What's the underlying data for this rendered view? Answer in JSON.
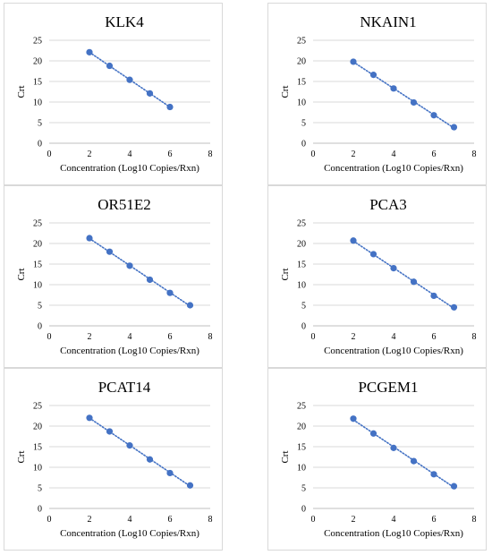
{
  "chart_data": [
    {
      "type": "scatter",
      "title": "KLK4",
      "xlabel": "Concentration (Log10 Copies/Rxn)",
      "ylabel": "Crt",
      "xlim": [
        0,
        8
      ],
      "ylim": [
        0,
        25
      ],
      "xticks": [
        0,
        2,
        4,
        6,
        8
      ],
      "yticks": [
        0,
        5,
        10,
        15,
        20,
        25
      ],
      "grid": "horizontal",
      "trendline": "linear, dotted",
      "series": [
        {
          "x": [
            2,
            3,
            4,
            5,
            6
          ],
          "y": [
            22.1,
            18.8,
            15.4,
            12.1,
            8.8
          ]
        }
      ],
      "color": "#4472c4"
    },
    {
      "type": "scatter",
      "title": "NKAIN1",
      "xlabel": "Concentration (Log10 Copies/Rxn)",
      "ylabel": "Crt",
      "xlim": [
        0,
        8
      ],
      "ylim": [
        0,
        25
      ],
      "xticks": [
        0,
        2,
        4,
        6,
        8
      ],
      "yticks": [
        0,
        5,
        10,
        15,
        20,
        25
      ],
      "grid": "horizontal",
      "trendline": "linear, dotted",
      "series": [
        {
          "x": [
            2,
            3,
            4,
            5,
            6,
            7
          ],
          "y": [
            19.8,
            16.6,
            13.3,
            9.9,
            6.8,
            3.9
          ]
        }
      ],
      "color": "#4472c4"
    },
    {
      "type": "scatter",
      "title": "OR51E2",
      "xlabel": "Concentration (Log10 Copies/Rxn)",
      "ylabel": "Crt",
      "xlim": [
        0,
        8
      ],
      "ylim": [
        0,
        25
      ],
      "xticks": [
        0,
        2,
        4,
        6,
        8
      ],
      "yticks": [
        0,
        5,
        10,
        15,
        20,
        25
      ],
      "grid": "horizontal",
      "trendline": "linear, dotted",
      "series": [
        {
          "x": [
            2,
            3,
            4,
            5,
            6,
            7
          ],
          "y": [
            21.3,
            18.0,
            14.6,
            11.2,
            8.0,
            5.0
          ]
        }
      ],
      "color": "#4472c4"
    },
    {
      "type": "scatter",
      "title": "PCA3",
      "xlabel": "Concentration (Log10 Copies/Rxn)",
      "ylabel": "Crt",
      "xlim": [
        0,
        8
      ],
      "ylim": [
        0,
        25
      ],
      "xticks": [
        0,
        2,
        4,
        6,
        8
      ],
      "yticks": [
        0,
        5,
        10,
        15,
        20,
        25
      ],
      "grid": "horizontal",
      "trendline": "linear, dotted",
      "series": [
        {
          "x": [
            2,
            3,
            4,
            5,
            6,
            7
          ],
          "y": [
            20.7,
            17.4,
            14.0,
            10.7,
            7.3,
            4.5
          ]
        }
      ],
      "color": "#4472c4"
    },
    {
      "type": "scatter",
      "title": "PCAT14",
      "xlabel": "Concentration (Log10 Copies/Rxn)",
      "ylabel": "Crt",
      "xlim": [
        0,
        8
      ],
      "ylim": [
        0,
        25
      ],
      "xticks": [
        0,
        2,
        4,
        6,
        8
      ],
      "yticks": [
        0,
        5,
        10,
        15,
        20,
        25
      ],
      "grid": "horizontal",
      "trendline": "linear, dotted",
      "series": [
        {
          "x": [
            2,
            3,
            4,
            5,
            6,
            7
          ],
          "y": [
            22.0,
            18.7,
            15.3,
            11.9,
            8.6,
            5.6
          ]
        }
      ],
      "color": "#4472c4"
    },
    {
      "type": "scatter",
      "title": "PCGEM1",
      "xlabel": "Concentration (Log10 Copies/Rxn)",
      "ylabel": "Crt",
      "xlim": [
        0,
        8
      ],
      "ylim": [
        0,
        25
      ],
      "xticks": [
        0,
        2,
        4,
        6,
        8
      ],
      "yticks": [
        0,
        5,
        10,
        15,
        20,
        25
      ],
      "grid": "horizontal",
      "trendline": "linear, dotted",
      "series": [
        {
          "x": [
            2,
            3,
            4,
            5,
            6,
            7
          ],
          "y": [
            21.8,
            18.2,
            14.7,
            11.5,
            8.3,
            5.4
          ]
        }
      ],
      "color": "#4472c4"
    }
  ]
}
